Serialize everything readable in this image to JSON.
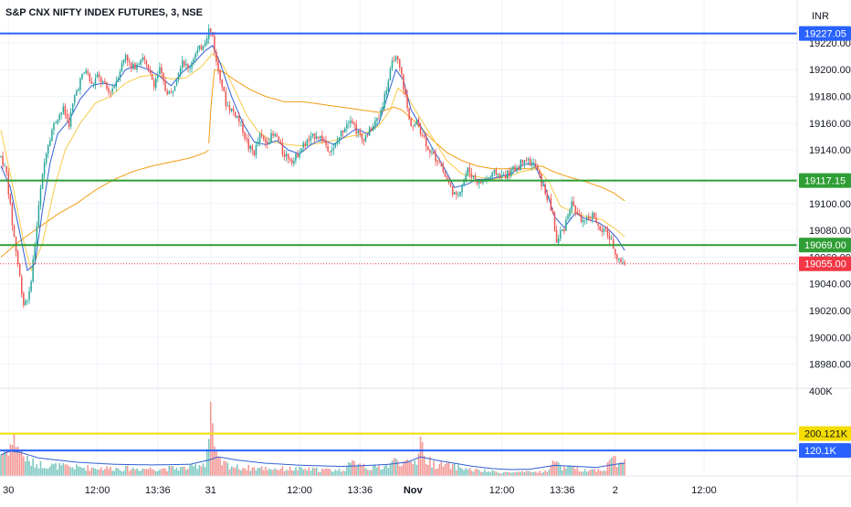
{
  "title": "S&P CNX NIFTY INDEX FUTURES, 3, NSE",
  "currency": "INR",
  "colors": {
    "up": "#26a69a",
    "down": "#ef5350",
    "blue": "#2962ff",
    "green": "#2e9e35",
    "yellow": "#f5dd00",
    "ma_fast": "#2f5fd3",
    "ma_slow": "#f7c948",
    "vwap": "#f39c12",
    "last": "#f23645"
  },
  "chart_data": {
    "type": "candlestick",
    "price_ylim": [
      18962,
      19252
    ],
    "yticks": [
      {
        "value": 19220,
        "label": "19220.00"
      },
      {
        "value": 19200,
        "label": "19200.00"
      },
      {
        "value": 19180,
        "label": "19180.00"
      },
      {
        "value": 19160,
        "label": "19160.00"
      },
      {
        "value": 19140,
        "label": "19140.00"
      },
      {
        "value": 19100,
        "label": "19100.00"
      },
      {
        "value": 19080,
        "label": "19080.00"
      },
      {
        "value": 19060,
        "label": "19060.00"
      },
      {
        "value": 19040,
        "label": "19040.00"
      },
      {
        "value": 19020,
        "label": "19020.00"
      },
      {
        "value": 19000,
        "label": "19000.00"
      },
      {
        "value": 18980,
        "label": "18980.00"
      }
    ],
    "xticks": [
      {
        "label": "30",
        "bar": 4,
        "bold": false
      },
      {
        "label": "12:00",
        "bar": 51,
        "bold": false
      },
      {
        "label": "13:36",
        "bar": 83,
        "bold": false
      },
      {
        "label": "31",
        "bar": 111,
        "bold": false
      },
      {
        "label": "12:00",
        "bar": 158,
        "bold": false
      },
      {
        "label": "13:36",
        "bar": 190,
        "bold": false
      },
      {
        "label": "Nov",
        "bar": 218,
        "bold": true
      },
      {
        "label": "12:00",
        "bar": 265,
        "bold": false
      },
      {
        "label": "13:36",
        "bar": 297,
        "bold": false
      },
      {
        "label": "2",
        "bar": 325,
        "bold": false
      },
      {
        "label": "12:00",
        "bar": 372,
        "bold": false
      }
    ],
    "horizontal_levels": [
      {
        "value": 19227.05,
        "label": "19227.05",
        "color": "#2962ff"
      },
      {
        "value": 19117.15,
        "label": "19117.15",
        "color": "#2e9e35"
      },
      {
        "value": 19069.0,
        "label": "19069.00",
        "color": "#2e9e35"
      }
    ],
    "last_price": {
      "value": 19055.0,
      "label": "19055.00"
    },
    "price_anchors": [
      [
        0,
        19135
      ],
      [
        3,
        19122
      ],
      [
        6,
        19085
      ],
      [
        9,
        19055
      ],
      [
        12,
        19025
      ],
      [
        15,
        19032
      ],
      [
        18,
        19070
      ],
      [
        21,
        19110
      ],
      [
        24,
        19140
      ],
      [
        27,
        19155
      ],
      [
        30,
        19165
      ],
      [
        33,
        19170
      ],
      [
        36,
        19160
      ],
      [
        39,
        19180
      ],
      [
        42,
        19192
      ],
      [
        45,
        19200
      ],
      [
        48,
        19188
      ],
      [
        51,
        19195
      ],
      [
        54,
        19190
      ],
      [
        57,
        19183
      ],
      [
        60,
        19188
      ],
      [
        63,
        19200
      ],
      [
        66,
        19212
      ],
      [
        69,
        19200
      ],
      [
        72,
        19205
      ],
      [
        75,
        19210
      ],
      [
        78,
        19198
      ],
      [
        81,
        19190
      ],
      [
        84,
        19200
      ],
      [
        87,
        19185
      ],
      [
        90,
        19182
      ],
      [
        93,
        19195
      ],
      [
        96,
        19208
      ],
      [
        99,
        19200
      ],
      [
        102,
        19210
      ],
      [
        105,
        19215
      ],
      [
        108,
        19222
      ],
      [
        110,
        19230
      ],
      [
        112,
        19225
      ],
      [
        114,
        19205
      ],
      [
        116,
        19195
      ],
      [
        119,
        19175
      ],
      [
        122,
        19170
      ],
      [
        125,
        19165
      ],
      [
        128,
        19155
      ],
      [
        131,
        19142
      ],
      [
        134,
        19138
      ],
      [
        137,
        19150
      ],
      [
        140,
        19146
      ],
      [
        143,
        19150
      ],
      [
        146,
        19150
      ],
      [
        149,
        19138
      ],
      [
        152,
        19135
      ],
      [
        155,
        19132
      ],
      [
        158,
        19140
      ],
      [
        161,
        19145
      ],
      [
        164,
        19148
      ],
      [
        167,
        19152
      ],
      [
        170,
        19148
      ],
      [
        173,
        19142
      ],
      [
        176,
        19140
      ],
      [
        179,
        19150
      ],
      [
        182,
        19158
      ],
      [
        185,
        19165
      ],
      [
        188,
        19155
      ],
      [
        191,
        19148
      ],
      [
        194,
        19152
      ],
      [
        197,
        19158
      ],
      [
        200,
        19165
      ],
      [
        203,
        19180
      ],
      [
        206,
        19198
      ],
      [
        208,
        19210
      ],
      [
        210,
        19205
      ],
      [
        212,
        19195
      ],
      [
        214,
        19180
      ],
      [
        216,
        19162
      ],
      [
        218,
        19158
      ],
      [
        220,
        19160
      ],
      [
        223,
        19152
      ],
      [
        226,
        19142
      ],
      [
        229,
        19135
      ],
      [
        232,
        19132
      ],
      [
        235,
        19120
      ],
      [
        238,
        19112
      ],
      [
        241,
        19104
      ],
      [
        244,
        19115
      ],
      [
        247,
        19125
      ],
      [
        250,
        19120
      ],
      [
        253,
        19115
      ],
      [
        256,
        19118
      ],
      [
        259,
        19120
      ],
      [
        262,
        19123
      ],
      [
        265,
        19120
      ],
      [
        268,
        19122
      ],
      [
        271,
        19125
      ],
      [
        274,
        19128
      ],
      [
        277,
        19135
      ],
      [
        280,
        19130
      ],
      [
        283,
        19128
      ],
      [
        286,
        19115
      ],
      [
        289,
        19105
      ],
      [
        292,
        19092
      ],
      [
        294,
        19070
      ],
      [
        296,
        19078
      ],
      [
        298,
        19082
      ],
      [
        300,
        19093
      ],
      [
        302,
        19100
      ],
      [
        304,
        19095
      ],
      [
        306,
        19090
      ],
      [
        309,
        19085
      ],
      [
        312,
        19090
      ],
      [
        314,
        19092
      ],
      [
        316,
        19082
      ],
      [
        318,
        19078
      ],
      [
        320,
        19080
      ],
      [
        322,
        19074
      ],
      [
        324,
        19068
      ],
      [
        326,
        19060
      ],
      [
        328,
        19057
      ],
      [
        329,
        19055
      ]
    ],
    "ma_fast_anchors": [
      [
        0,
        19128
      ],
      [
        5,
        19112
      ],
      [
        10,
        19078
      ],
      [
        14,
        19050
      ],
      [
        18,
        19055
      ],
      [
        22,
        19095
      ],
      [
        26,
        19130
      ],
      [
        30,
        19152
      ],
      [
        36,
        19162
      ],
      [
        42,
        19178
      ],
      [
        48,
        19188
      ],
      [
        54,
        19190
      ],
      [
        60,
        19188
      ],
      [
        66,
        19200
      ],
      [
        72,
        19203
      ],
      [
        78,
        19200
      ],
      [
        84,
        19195
      ],
      [
        90,
        19188
      ],
      [
        96,
        19198
      ],
      [
        102,
        19205
      ],
      [
        108,
        19214
      ],
      [
        112,
        19218
      ],
      [
        116,
        19205
      ],
      [
        122,
        19180
      ],
      [
        128,
        19160
      ],
      [
        134,
        19146
      ],
      [
        140,
        19144
      ],
      [
        146,
        19147
      ],
      [
        152,
        19140
      ],
      [
        158,
        19137
      ],
      [
        164,
        19144
      ],
      [
        170,
        19148
      ],
      [
        176,
        19144
      ],
      [
        182,
        19150
      ],
      [
        188,
        19156
      ],
      [
        194,
        19152
      ],
      [
        200,
        19160
      ],
      [
        205,
        19182
      ],
      [
        209,
        19200
      ],
      [
        213,
        19192
      ],
      [
        217,
        19170
      ],
      [
        222,
        19158
      ],
      [
        228,
        19142
      ],
      [
        234,
        19128
      ],
      [
        240,
        19112
      ],
      [
        246,
        19114
      ],
      [
        252,
        19118
      ],
      [
        258,
        19118
      ],
      [
        264,
        19120
      ],
      [
        270,
        19122
      ],
      [
        276,
        19129
      ],
      [
        282,
        19130
      ],
      [
        288,
        19112
      ],
      [
        293,
        19090
      ],
      [
        298,
        19082
      ],
      [
        304,
        19093
      ],
      [
        310,
        19088
      ],
      [
        316,
        19086
      ],
      [
        322,
        19080
      ],
      [
        326,
        19074
      ],
      [
        330,
        19065
      ]
    ],
    "ma_slow_anchors": [
      [
        0,
        19155
      ],
      [
        6,
        19115
      ],
      [
        12,
        19072
      ],
      [
        16,
        19050
      ],
      [
        22,
        19070
      ],
      [
        28,
        19110
      ],
      [
        34,
        19140
      ],
      [
        42,
        19160
      ],
      [
        50,
        19175
      ],
      [
        58,
        19180
      ],
      [
        66,
        19190
      ],
      [
        74,
        19195
      ],
      [
        82,
        19196
      ],
      [
        90,
        19193
      ],
      [
        98,
        19194
      ],
      [
        106,
        19202
      ],
      [
        112,
        19212
      ],
      [
        118,
        19202
      ],
      [
        124,
        19184
      ],
      [
        130,
        19166
      ],
      [
        136,
        19154
      ],
      [
        144,
        19146
      ],
      [
        152,
        19144
      ],
      [
        160,
        19143
      ],
      [
        168,
        19145
      ],
      [
        176,
        19147
      ],
      [
        184,
        19150
      ],
      [
        192,
        19152
      ],
      [
        200,
        19158
      ],
      [
        206,
        19170
      ],
      [
        210,
        19186
      ],
      [
        214,
        19182
      ],
      [
        220,
        19168
      ],
      [
        228,
        19150
      ],
      [
        236,
        19132
      ],
      [
        244,
        19122
      ],
      [
        252,
        19120
      ],
      [
        260,
        19118
      ],
      [
        268,
        19120
      ],
      [
        276,
        19124
      ],
      [
        284,
        19126
      ],
      [
        290,
        19116
      ],
      [
        296,
        19098
      ],
      [
        302,
        19094
      ],
      [
        310,
        19090
      ],
      [
        318,
        19088
      ],
      [
        326,
        19080
      ],
      [
        330,
        19075
      ]
    ],
    "vwap_anchors": [
      [
        110,
        19145
      ],
      [
        111,
        19170
      ],
      [
        113,
        19200
      ],
      [
        118,
        19198
      ],
      [
        124,
        19192
      ],
      [
        132,
        19185
      ],
      [
        140,
        19180
      ],
      [
        150,
        19176
      ],
      [
        160,
        19176
      ],
      [
        170,
        19174
      ],
      [
        180,
        19172
      ],
      [
        190,
        19170
      ],
      [
        200,
        19168
      ],
      [
        208,
        19172
      ],
      [
        212,
        19170
      ],
      [
        220,
        19160
      ],
      [
        228,
        19148
      ],
      [
        236,
        19138
      ],
      [
        244,
        19132
      ],
      [
        252,
        19128
      ],
      [
        260,
        19126
      ],
      [
        270,
        19126
      ],
      [
        280,
        19126
      ],
      [
        286,
        19128
      ],
      [
        292,
        19124
      ],
      [
        300,
        19120
      ],
      [
        310,
        19116
      ],
      [
        318,
        19112
      ],
      [
        324,
        19108
      ],
      [
        330,
        19102
      ]
    ],
    "session2_vwap_anchors": [
      [
        0,
        19060
      ],
      [
        10,
        19072
      ],
      [
        20,
        19082
      ],
      [
        30,
        19092
      ],
      [
        40,
        19100
      ],
      [
        50,
        19110
      ],
      [
        60,
        19118
      ],
      [
        70,
        19124
      ],
      [
        80,
        19128
      ],
      [
        90,
        19131
      ],
      [
        100,
        19134
      ],
      [
        108,
        19138
      ],
      [
        110,
        19140
      ]
    ],
    "volume_ylim": [
      0,
      410000
    ],
    "volume_axis_label": "400K",
    "volume_levels": [
      {
        "value": 200121,
        "label": "200.121K",
        "color": "#f5dd00"
      },
      {
        "value": 120100,
        "label": "120.1K",
        "color": "#2962ff"
      }
    ],
    "volume_anchors": [
      [
        0,
        115000
      ],
      [
        4,
        150000
      ],
      [
        8,
        190000
      ],
      [
        11,
        120000
      ],
      [
        15,
        70000
      ],
      [
        25,
        55000
      ],
      [
        40,
        45000
      ],
      [
        60,
        40000
      ],
      [
        80,
        38000
      ],
      [
        100,
        42000
      ],
      [
        108,
        70000
      ],
      [
        110,
        210000
      ],
      [
        111,
        380000
      ],
      [
        113,
        120000
      ],
      [
        116,
        70000
      ],
      [
        125,
        45000
      ],
      [
        140,
        40000
      ],
      [
        160,
        35000
      ],
      [
        180,
        30000
      ],
      [
        189,
        80000
      ],
      [
        195,
        40000
      ],
      [
        205,
        55000
      ],
      [
        210,
        90000
      ],
      [
        214,
        60000
      ],
      [
        220,
        80000
      ],
      [
        222,
        230000
      ],
      [
        224,
        90000
      ],
      [
        230,
        60000
      ],
      [
        240,
        50000
      ],
      [
        250,
        30000
      ],
      [
        260,
        22000
      ],
      [
        270,
        18000
      ],
      [
        280,
        20000
      ],
      [
        290,
        25000
      ],
      [
        293,
        110000
      ],
      [
        296,
        45000
      ],
      [
        303,
        40000
      ],
      [
        310,
        30000
      ],
      [
        320,
        35000
      ],
      [
        324,
        120000
      ],
      [
        326,
        60000
      ],
      [
        330,
        70000
      ]
    ],
    "volume_ma_anchors": [
      [
        0,
        100000
      ],
      [
        5,
        118000
      ],
      [
        10,
        112000
      ],
      [
        20,
        85000
      ],
      [
        40,
        65000
      ],
      [
        60,
        55000
      ],
      [
        80,
        52000
      ],
      [
        100,
        55000
      ],
      [
        110,
        75000
      ],
      [
        115,
        90000
      ],
      [
        125,
        75000
      ],
      [
        140,
        60000
      ],
      [
        160,
        50000
      ],
      [
        180,
        45000
      ],
      [
        195,
        50000
      ],
      [
        205,
        55000
      ],
      [
        215,
        65000
      ],
      [
        222,
        90000
      ],
      [
        230,
        75000
      ],
      [
        240,
        60000
      ],
      [
        250,
        45000
      ],
      [
        260,
        35000
      ],
      [
        270,
        30000
      ],
      [
        280,
        32000
      ],
      [
        293,
        50000
      ],
      [
        305,
        45000
      ],
      [
        315,
        40000
      ],
      [
        325,
        55000
      ],
      [
        330,
        60000
      ]
    ]
  }
}
